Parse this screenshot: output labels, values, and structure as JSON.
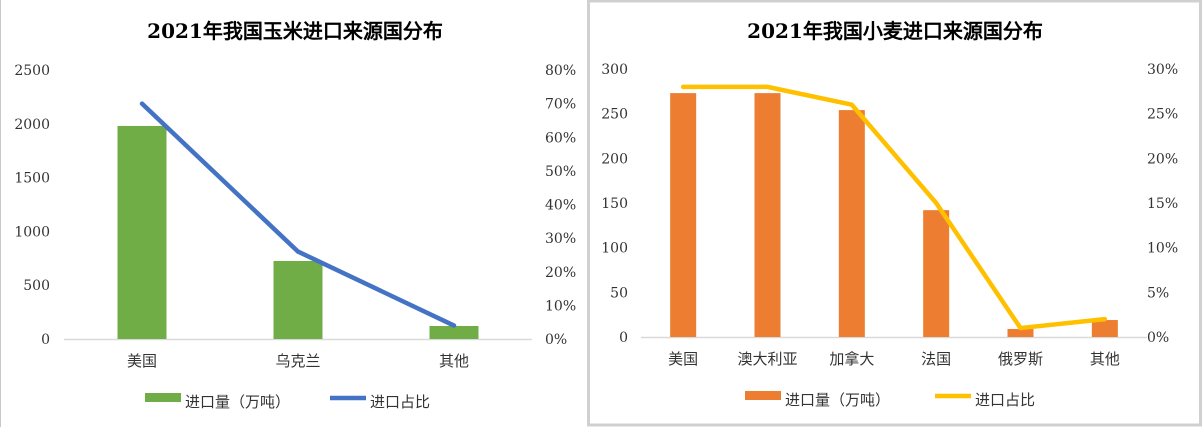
{
  "chart_data": [
    {
      "type": "bar+line",
      "title": "2021年我国玉米进口来源国分布",
      "categories": [
        "美国",
        "乌克兰",
        "其他"
      ],
      "series": [
        {
          "name": "进口量（万吨）",
          "type": "bar",
          "axis": "left",
          "values": [
            1980,
            725,
            121
          ],
          "color": "#70AD47"
        },
        {
          "name": "进口占比",
          "type": "line",
          "axis": "right",
          "values": [
            0.7,
            0.26,
            0.04
          ],
          "color": "#4472C4"
        }
      ],
      "ylim": [
        0,
        2500
      ],
      "yticks": [
        "0",
        "500",
        "1000",
        "1500",
        "2000",
        "2500"
      ],
      "y2lim": [
        0,
        0.8
      ],
      "y2ticks": [
        "0%",
        "10%",
        "20%",
        "30%",
        "40%",
        "50%",
        "60%",
        "70%",
        "80%"
      ],
      "legend": "bottom",
      "grid": false
    },
    {
      "type": "bar+line",
      "title": "2021年我国小麦进口来源国分布",
      "categories": [
        "美国",
        "澳大利亚",
        "加拿大",
        "法国",
        "俄罗斯",
        "其他"
      ],
      "series": [
        {
          "name": "进口量（万吨）",
          "type": "bar",
          "axis": "left",
          "values": [
            273,
            273,
            254,
            142,
            9,
            19
          ],
          "color": "#ED7D31"
        },
        {
          "name": "进口占比",
          "type": "line",
          "axis": "right",
          "values": [
            0.28,
            0.28,
            0.26,
            0.15,
            0.01,
            0.02
          ],
          "color": "#FFC000"
        }
      ],
      "ylim": [
        0,
        300
      ],
      "yticks": [
        "0",
        "50",
        "100",
        "150",
        "200",
        "250",
        "300"
      ],
      "y2lim": [
        0,
        0.3
      ],
      "y2ticks": [
        "0%",
        "5%",
        "10%",
        "15%",
        "20%",
        "25%",
        "30%"
      ],
      "legend": "bottom",
      "grid": false
    }
  ]
}
